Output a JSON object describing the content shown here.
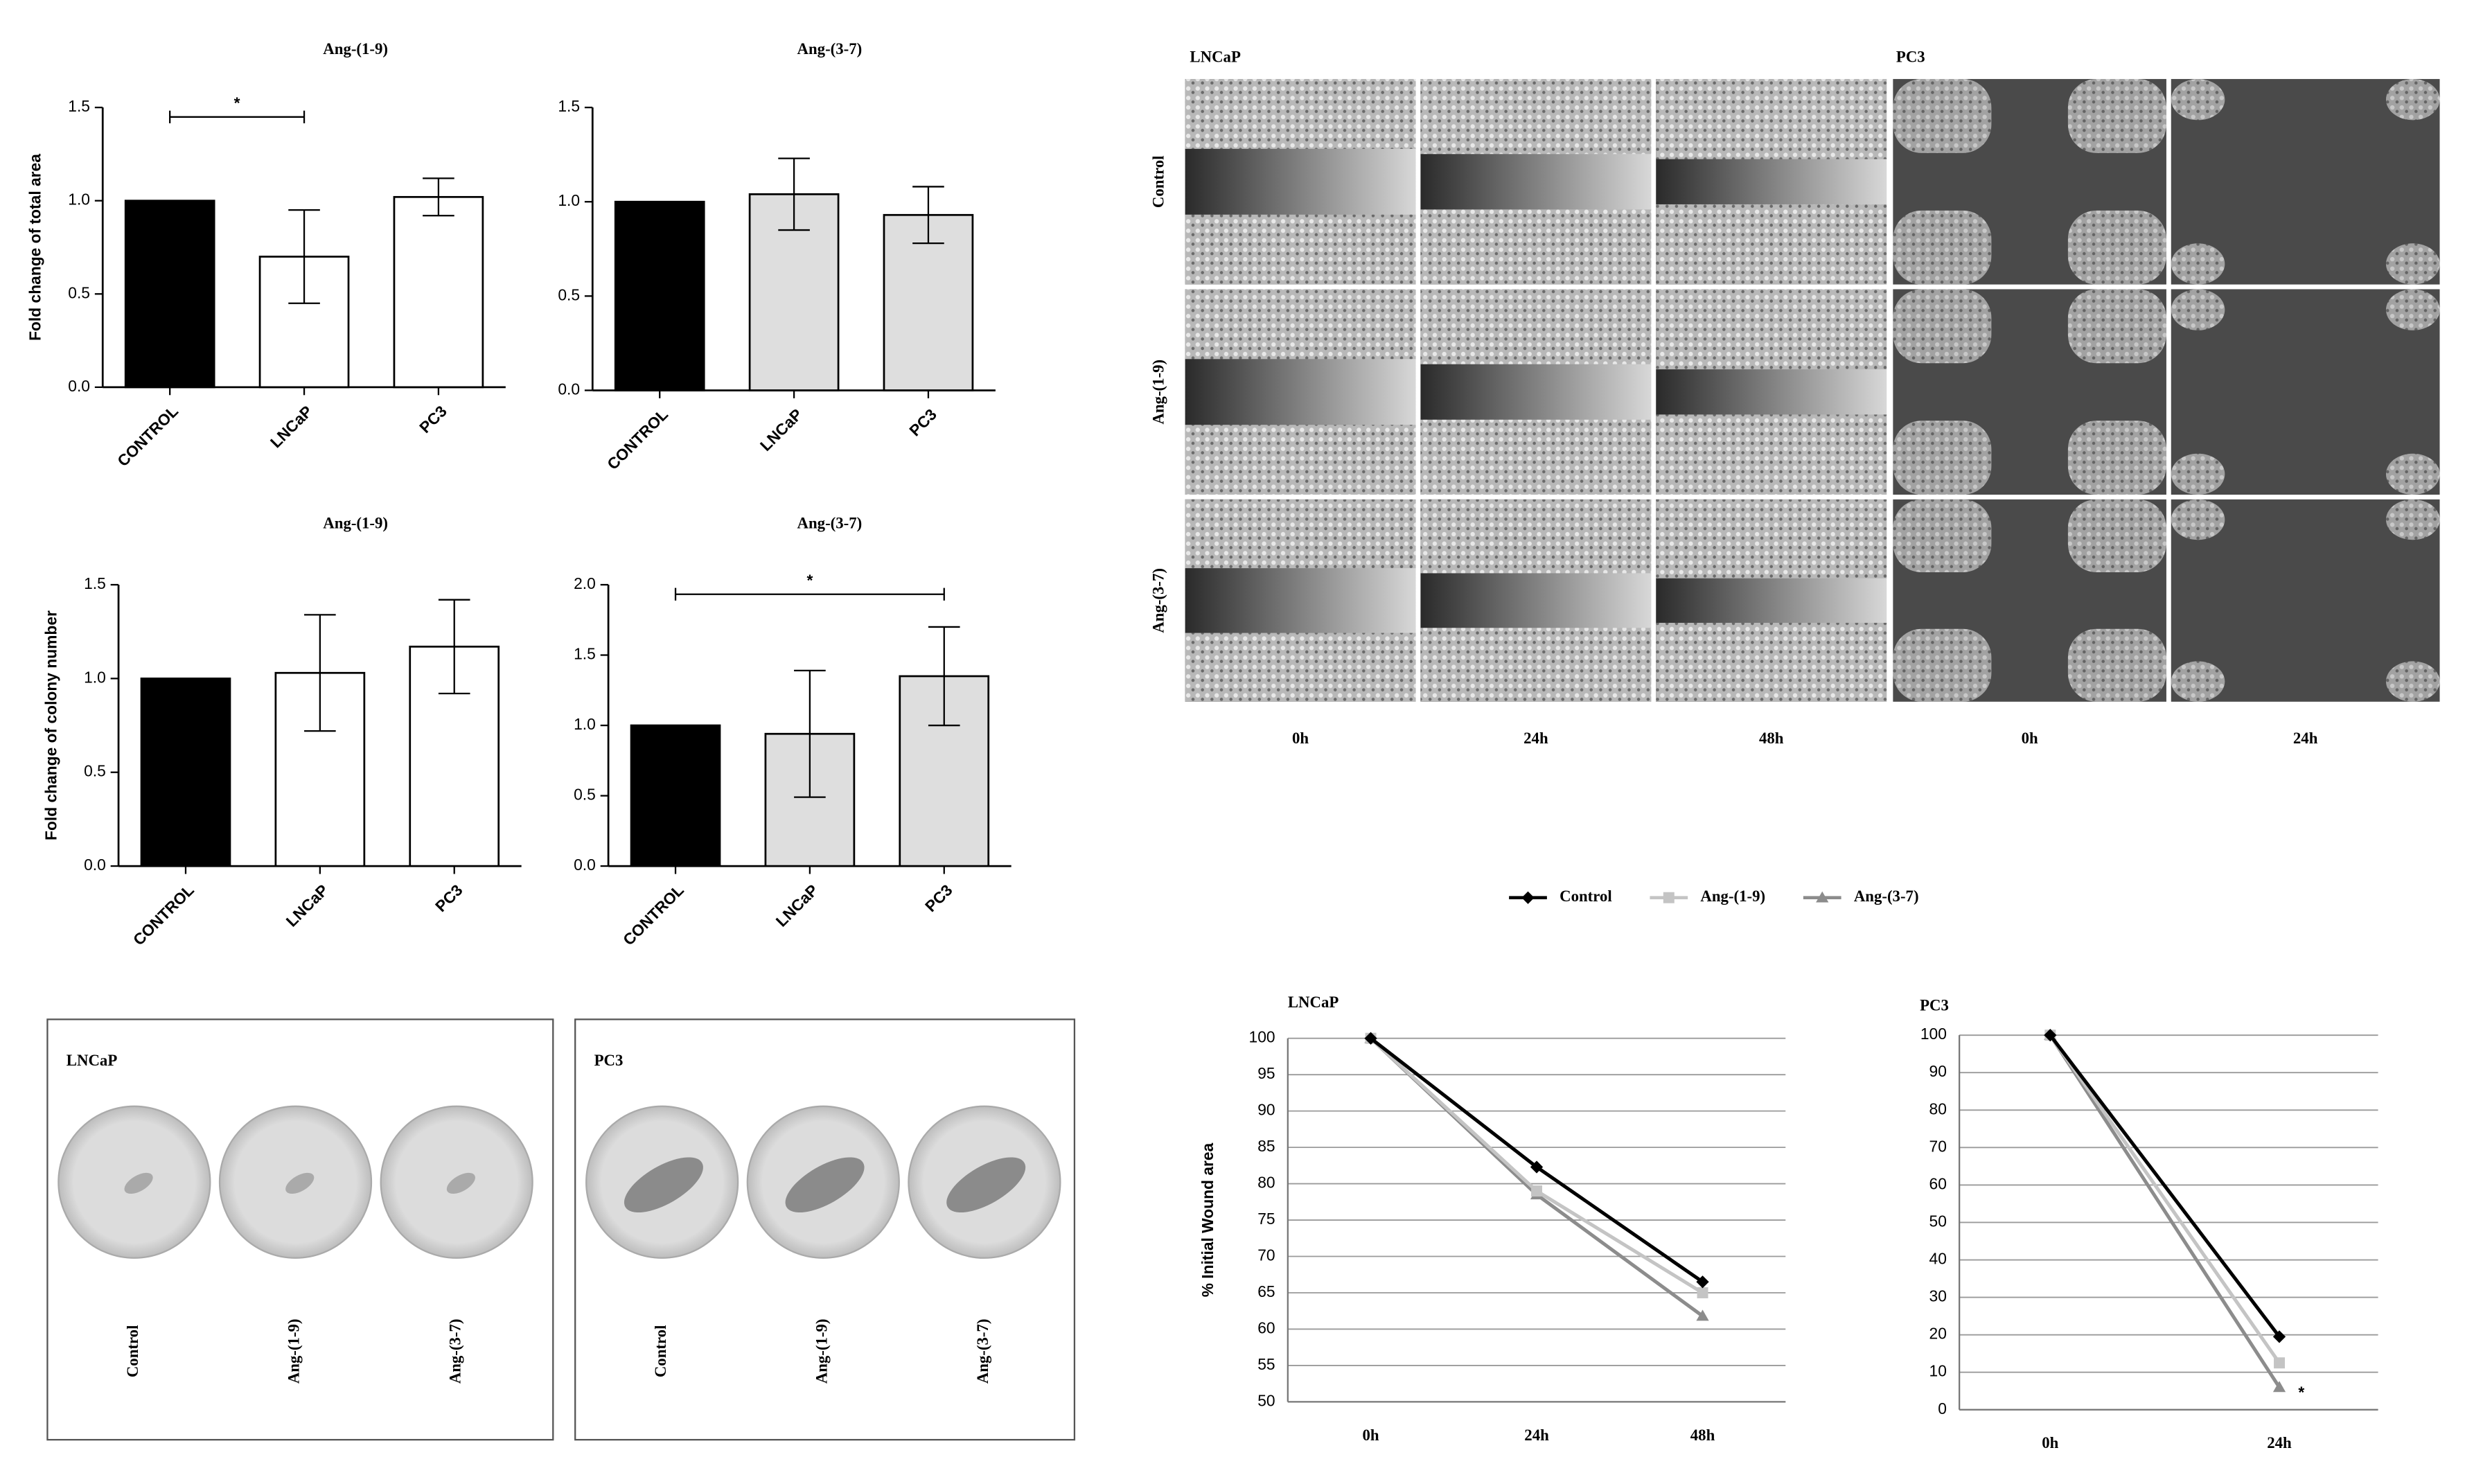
{
  "chart_data": [
    {
      "type": "bar",
      "title": "Ang-(1-9)",
      "y_label": "Fold change of total area",
      "categories": [
        "CONTROL",
        "LNCaP",
        "PC3"
      ],
      "values": [
        1.0,
        0.7,
        1.02
      ],
      "errors": [
        0,
        0.25,
        0.1
      ],
      "colors": [
        "#000000",
        "#ffffff",
        "#ffffff"
      ],
      "ylim": [
        0,
        1.5
      ],
      "yticks": [
        {
          "value": 0,
          "label": "0.0"
        },
        {
          "value": 0.5,
          "label": "0.5"
        },
        {
          "value": 1,
          "label": "1.0"
        },
        {
          "value": 1.5,
          "label": "1.5"
        }
      ],
      "significance": {
        "label": "*",
        "between": [
          "CONTROL",
          "LNCaP"
        ]
      }
    },
    {
      "type": "bar",
      "title": "Ang-(3-7)",
      "categories": [
        "CONTROL",
        "LNCaP",
        "PC3"
      ],
      "values": [
        1.0,
        1.04,
        0.93
      ],
      "errors": [
        0,
        0.19,
        0.15
      ],
      "colors": [
        "#000000",
        "#dedede",
        "#dedede"
      ],
      "ylim": [
        0,
        1.5
      ],
      "yticks": [
        {
          "value": 0,
          "label": "0.0"
        },
        {
          "value": 0.5,
          "label": "0.5"
        },
        {
          "value": 1,
          "label": "1.0"
        },
        {
          "value": 1.5,
          "label": "1.5"
        }
      ]
    },
    {
      "type": "bar",
      "title": "Ang-(1-9)",
      "y_label": "Fold change of colony number",
      "categories": [
        "CONTROL",
        "LNCaP",
        "PC3"
      ],
      "values": [
        1.0,
        1.03,
        1.17
      ],
      "errors": [
        0,
        0.31,
        0.25
      ],
      "colors": [
        "#000000",
        "#ffffff",
        "#ffffff"
      ],
      "ylim": [
        0,
        1.5
      ],
      "yticks": [
        {
          "value": 0,
          "label": "0.0"
        },
        {
          "value": 0.5,
          "label": "0.5"
        },
        {
          "value": 1,
          "label": "1.0"
        },
        {
          "value": 1.5,
          "label": "1.5"
        }
      ]
    },
    {
      "type": "bar",
      "title": "Ang-(3-7)",
      "categories": [
        "CONTROL",
        "LNCaP",
        "PC3"
      ],
      "values": [
        1.0,
        0.94,
        1.35
      ],
      "errors": [
        0,
        0.45,
        0.35
      ],
      "colors": [
        "#000000",
        "#dedede",
        "#dedede"
      ],
      "ylim": [
        0,
        2
      ],
      "yticks": [
        {
          "value": 0,
          "label": "0.0"
        },
        {
          "value": 0.5,
          "label": "0.5"
        },
        {
          "value": 1,
          "label": "1.0"
        },
        {
          "value": 1.5,
          "label": "1.5"
        },
        {
          "value": 2,
          "label": "2.0"
        }
      ],
      "significance": {
        "label": "*",
        "between": [
          "CONTROL",
          "PC3"
        ]
      }
    },
    {
      "type": "line",
      "title": "LNCaP",
      "y_label": "% Initial Wound area",
      "legend": "top",
      "grid": true,
      "categories": [
        "0h",
        "24h",
        "48h"
      ],
      "series": [
        {
          "name": "Control",
          "color": "#000000",
          "marker": "diamond",
          "values": [
            100,
            82.3,
            66.5
          ]
        },
        {
          "name": "Ang-(1-9)",
          "color": "#c4c4c4",
          "marker": "square",
          "values": [
            100,
            79,
            65
          ]
        },
        {
          "name": "Ang-(3-7)",
          "color": "#8c8c8c",
          "marker": "triangle",
          "values": [
            100,
            78.5,
            61.8
          ]
        }
      ],
      "ylim": [
        50,
        100
      ],
      "yticks": [
        50,
        55,
        60,
        65,
        70,
        75,
        80,
        85,
        90,
        95,
        100
      ]
    },
    {
      "type": "line",
      "title": "PC3",
      "grid": true,
      "categories": [
        "0h",
        "24h"
      ],
      "series": [
        {
          "color": "#000000",
          "marker": "diamond",
          "values": [
            100,
            19.5
          ]
        },
        {
          "color": "#c4c4c4",
          "marker": "square",
          "values": [
            100,
            12.5
          ]
        },
        {
          "color": "#8c8c8c",
          "marker": "triangle",
          "values": [
            100,
            6
          ]
        }
      ],
      "ylim": [
        0,
        100
      ],
      "yticks": [
        0,
        10,
        20,
        30,
        40,
        50,
        60,
        70,
        80,
        90,
        100
      ],
      "annotation": "*"
    }
  ],
  "wound_images": {
    "cell_lines": [
      "LNCaP",
      "PC3"
    ],
    "rows": [
      "Control",
      "Ang-(1-9)",
      "Ang-(3-7)"
    ],
    "times": [
      "0h",
      "24h",
      "48h",
      "0h",
      "24h"
    ]
  },
  "colony_images": [
    {
      "title": "LNCaP",
      "labels": [
        "Control",
        "Ang-(1-9)",
        "Ang-(3-7)"
      ]
    },
    {
      "title": "PC3",
      "labels": [
        "Control",
        "Ang-(1-9)",
        "Ang-(3-7)"
      ]
    }
  ]
}
